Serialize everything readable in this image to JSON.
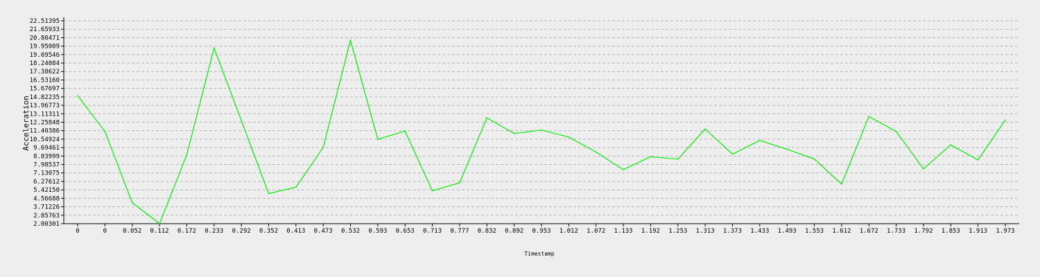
{
  "chart_data": {
    "type": "line",
    "title": "",
    "xlabel": "Timestamp",
    "ylabel": "Acceleration",
    "x_tick_labels": [
      "0",
      "0",
      "0.052",
      "0.112",
      "0.172",
      "0.233",
      "0.292",
      "0.352",
      "0.413",
      "0.473",
      "0.532",
      "0.593",
      "0.653",
      "0.713",
      "0.777",
      "0.832",
      "0.892",
      "0.953",
      "1.012",
      "1.072",
      "1.133",
      "1.192",
      "1.253",
      "1.313",
      "1.373",
      "1.433",
      "1.493",
      "1.553",
      "1.612",
      "1.672",
      "1.733",
      "1.792",
      "1.853",
      "1.913",
      "1.973"
    ],
    "y_tick_labels": [
      "2.00301",
      "2.85763",
      "3.71226",
      "4.56688",
      "5.42150",
      "6.27612",
      "7.13075",
      "7.98537",
      "8.83999",
      "9.69461",
      "10.54924",
      "11.40386",
      "12.25848",
      "13.11311",
      "13.96773",
      "14.82235",
      "15.67697",
      "16.53160",
      "17.38622",
      "18.24084",
      "19.09546",
      "19.95009",
      "20.80471",
      "21.65933",
      "22.51395"
    ],
    "ylim": [
      2.00301,
      22.51395
    ],
    "grid": true,
    "series": [
      {
        "color": "#00ee00",
        "x": [
          "0",
          "0",
          "0.052",
          "0.112",
          "0.172",
          "0.233",
          "0.292",
          "0.352",
          "0.413",
          "0.473",
          "0.532",
          "0.593",
          "0.653",
          "0.713",
          "0.777",
          "0.832",
          "0.892",
          "0.953",
          "1.012",
          "1.072",
          "1.133",
          "1.192",
          "1.253",
          "1.313",
          "1.373",
          "1.433",
          "1.493",
          "1.553",
          "1.612",
          "1.672",
          "1.733",
          "1.792",
          "1.853",
          "1.913",
          "1.973"
        ],
        "values": [
          14.95,
          11.32,
          4.13,
          2.0,
          8.97,
          19.76,
          12.44,
          5.05,
          5.69,
          9.72,
          20.55,
          10.53,
          11.37,
          5.33,
          6.13,
          12.71,
          11.12,
          11.47,
          10.76,
          9.24,
          7.47,
          8.77,
          8.53,
          11.58,
          9.03,
          10.42,
          9.52,
          8.55,
          6.01,
          12.84,
          11.32,
          7.55,
          9.97,
          8.45,
          12.49
        ]
      }
    ]
  }
}
